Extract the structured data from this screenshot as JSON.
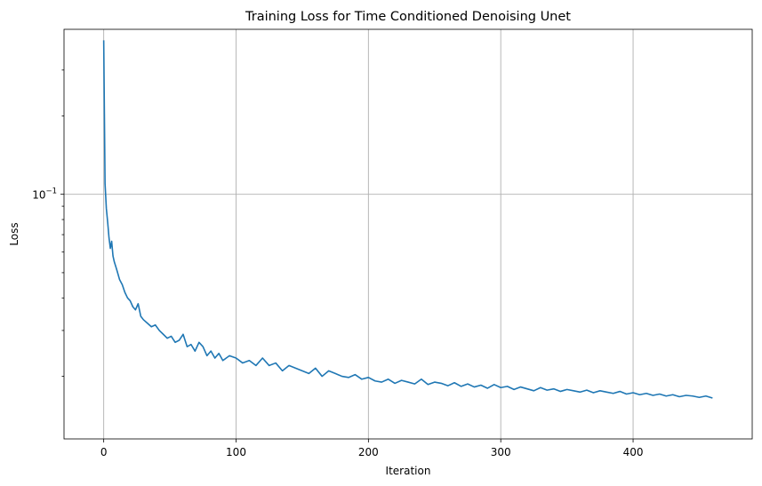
{
  "chart_data": {
    "type": "line",
    "title": "Training Loss for Time Conditioned Denoising Unet",
    "xlabel": "Iteration",
    "ylabel": "Loss",
    "xlim": [
      -30,
      490
    ],
    "ylim": [
      0.0115,
      0.43
    ],
    "y_scale": "log",
    "grid": true,
    "x_ticks": [
      {
        "value": 0,
        "label": "0"
      },
      {
        "value": 100,
        "label": "100"
      },
      {
        "value": 200,
        "label": "200"
      },
      {
        "value": 300,
        "label": "300"
      },
      {
        "value": 400,
        "label": "400"
      }
    ],
    "y_ticks": [
      {
        "value": 0.1,
        "label": "10",
        "exponent": "−1"
      }
    ],
    "y_minor_ticks": [
      0.02,
      0.03,
      0.04,
      0.05,
      0.06,
      0.07,
      0.08,
      0.09,
      0.2,
      0.3
    ],
    "series": [
      {
        "color": "#1f77b4",
        "x": [
          0,
          1,
          2,
          3,
          4,
          5,
          6,
          7,
          8,
          9,
          10,
          12,
          14,
          16,
          18,
          20,
          22,
          24,
          26,
          28,
          30,
          33,
          36,
          39,
          42,
          45,
          48,
          51,
          54,
          57,
          60,
          63,
          66,
          69,
          72,
          75,
          78,
          81,
          84,
          87,
          90,
          95,
          100,
          105,
          110,
          115,
          120,
          125,
          130,
          135,
          140,
          145,
          150,
          155,
          160,
          165,
          170,
          175,
          180,
          185,
          190,
          195,
          200,
          205,
          210,
          215,
          220,
          225,
          230,
          235,
          240,
          245,
          250,
          255,
          260,
          265,
          270,
          275,
          280,
          285,
          290,
          295,
          300,
          305,
          310,
          315,
          320,
          325,
          330,
          335,
          340,
          345,
          350,
          355,
          360,
          365,
          370,
          375,
          380,
          385,
          390,
          395,
          400,
          405,
          410,
          415,
          420,
          425,
          430,
          435,
          440,
          445,
          450,
          455,
          460
        ],
        "values": [
          0.39,
          0.11,
          0.088,
          0.078,
          0.068,
          0.062,
          0.066,
          0.058,
          0.055,
          0.053,
          0.051,
          0.047,
          0.045,
          0.042,
          0.04,
          0.039,
          0.037,
          0.036,
          0.038,
          0.034,
          0.033,
          0.032,
          0.031,
          0.0315,
          0.03,
          0.029,
          0.028,
          0.0285,
          0.027,
          0.0275,
          0.029,
          0.026,
          0.0265,
          0.025,
          0.027,
          0.026,
          0.024,
          0.025,
          0.0235,
          0.0245,
          0.023,
          0.024,
          0.0235,
          0.0225,
          0.023,
          0.022,
          0.0235,
          0.022,
          0.0225,
          0.021,
          0.022,
          0.0215,
          0.021,
          0.0205,
          0.0215,
          0.02,
          0.021,
          0.0205,
          0.02,
          0.0198,
          0.0203,
          0.0195,
          0.0198,
          0.0192,
          0.019,
          0.0195,
          0.0188,
          0.0193,
          0.019,
          0.0187,
          0.0195,
          0.0186,
          0.019,
          0.0188,
          0.0184,
          0.0189,
          0.0183,
          0.0187,
          0.0182,
          0.0185,
          0.018,
          0.0186,
          0.0181,
          0.0183,
          0.0178,
          0.0182,
          0.0179,
          0.0176,
          0.0181,
          0.0177,
          0.0179,
          0.0175,
          0.0178,
          0.0176,
          0.0174,
          0.0177,
          0.0173,
          0.0176,
          0.0174,
          0.0172,
          0.0175,
          0.0171,
          0.0173,
          0.017,
          0.0172,
          0.0169,
          0.0171,
          0.0168,
          0.017,
          0.0167,
          0.0169,
          0.0168,
          0.0166,
          0.0168,
          0.0165
        ]
      }
    ]
  }
}
